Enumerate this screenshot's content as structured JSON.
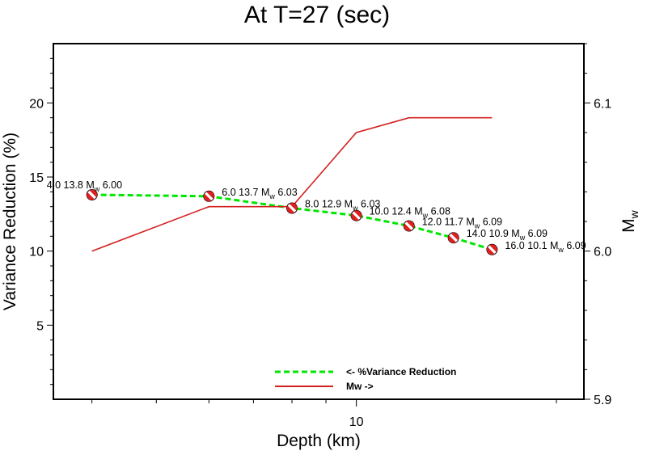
{
  "chart_data": {
    "type": "line",
    "title": "At T=27 (sec)",
    "xlabel": "Depth (km)",
    "ylabel": "Variance Reduction (%)",
    "y2label": "M",
    "y2label_sub": "w",
    "x_scale": "log",
    "xlim": [
      3.5,
      22
    ],
    "ylim": [
      0,
      24
    ],
    "y2lim": [
      5.9,
      6.14
    ],
    "x_tick_labels": [
      {
        "value": 10,
        "label": "10"
      }
    ],
    "y_ticks": [
      5,
      10,
      15,
      20
    ],
    "y2_ticks": [
      "5.9",
      "6.0",
      "6.1"
    ],
    "grid": false,
    "legend_position": "bottom-center",
    "x": [
      4.0,
      6.0,
      8.0,
      10.0,
      12.0,
      14.0,
      16.0
    ],
    "series": [
      {
        "name": "<- %Variance Reduction",
        "axis": "left",
        "color": "#00e600",
        "style": "dashed",
        "values": [
          13.8,
          13.7,
          12.9,
          12.4,
          11.7,
          10.9,
          10.1
        ]
      },
      {
        "name": "Mw ->",
        "axis": "right",
        "color": "#d42020",
        "style": "solid",
        "values": [
          6.0,
          6.03,
          6.03,
          6.08,
          6.09,
          6.09,
          6.09
        ]
      }
    ],
    "point_labels": [
      {
        "pre": "4.0 13.8 M",
        "mw": "6.00"
      },
      {
        "pre": "6.0 13.7 M",
        "mw": "6.03"
      },
      {
        "pre": "8.0 12.9 M",
        "mw": "6.03"
      },
      {
        "pre": "10.0 12.4 M",
        "mw": "6.08"
      },
      {
        "pre": "12.0 11.7 M",
        "mw": "6.09"
      },
      {
        "pre": "14.0 10.9 M",
        "mw": "6.09"
      },
      {
        "pre": "16.0 10.1 M",
        "mw": "6.09"
      }
    ],
    "colors": {
      "beachball_fill": "#e02020",
      "beachball_outline": "#000000"
    }
  }
}
